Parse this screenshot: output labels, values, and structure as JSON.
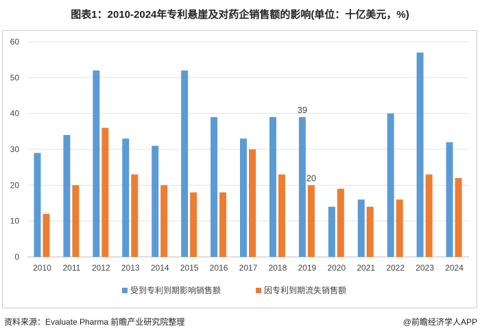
{
  "title": "图表1：2010-2024年专利悬崖及对药企销售额的影响(单位：十亿美元，%)",
  "source": "资料来源：Evaluate Pharma 前瞻产业研究院整理",
  "brand": "@前瞻经济学人APP",
  "chart_data": {
    "type": "bar",
    "title": "图表1：2010-2024年专利悬崖及对药企销售额的影响(单位：十亿美元，%)",
    "categories": [
      "2010",
      "2011",
      "2012",
      "2013",
      "2014",
      "2015",
      "2016",
      "2017",
      "2018",
      "2019",
      "2020",
      "2021",
      "2022",
      "2023",
      "2024"
    ],
    "series": [
      {
        "name": "受到专利到期影响销售额",
        "color": "#5b9bd5",
        "values": [
          29,
          34,
          52,
          33,
          31,
          52,
          39,
          33,
          39,
          39,
          14,
          16,
          40,
          57,
          32
        ]
      },
      {
        "name": "因专利到期流失销售额",
        "color": "#ed7d31",
        "values": [
          12,
          20,
          36,
          23,
          20,
          18,
          18,
          30,
          23,
          20,
          19,
          14,
          16,
          23,
          22
        ]
      }
    ],
    "data_labels": [
      {
        "series": 0,
        "category": "2019",
        "text": "39"
      },
      {
        "series": 1,
        "category": "2019",
        "text": "20"
      }
    ],
    "ylim": [
      0,
      60
    ],
    "yticks": [
      "0",
      "10",
      "20",
      "30",
      "40",
      "50",
      "60"
    ],
    "grid": true,
    "legend_position": "bottom"
  }
}
